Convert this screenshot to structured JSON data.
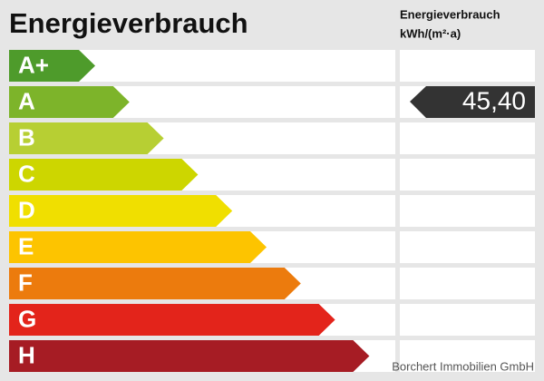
{
  "title": "Energieverbrauch",
  "header": {
    "line1": "Energieverbrauch",
    "line2": "kWh/(m²·a)"
  },
  "classes": [
    {
      "label": "A+",
      "color": "#4e9b2b"
    },
    {
      "label": "A",
      "color": "#7db42a"
    },
    {
      "label": "B",
      "color": "#b7cf33"
    },
    {
      "label": "C",
      "color": "#cdd600"
    },
    {
      "label": "D",
      "color": "#f0df00"
    },
    {
      "label": "E",
      "color": "#fdc400"
    },
    {
      "label": "F",
      "color": "#ec7b0d"
    },
    {
      "label": "G",
      "color": "#e3241b"
    },
    {
      "label": "H",
      "color": "#a61c24"
    }
  ],
  "indicator": {
    "value": "45,40"
  },
  "watermark": "Borchert Immobilien GmbH"
}
